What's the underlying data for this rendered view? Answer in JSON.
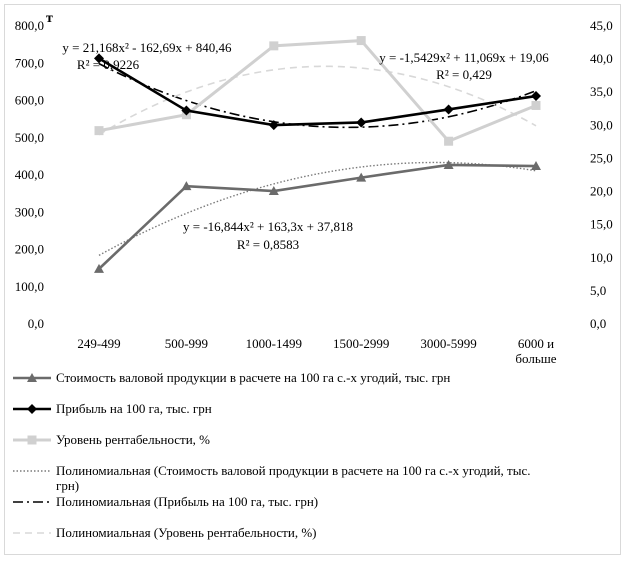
{
  "chart_data": {
    "type": "line",
    "y_unit_label": "т",
    "categories": [
      "249-499",
      "500-999",
      "1000-1499",
      "1500-2999",
      "3000-5999",
      "6000 и больше"
    ],
    "category_lines": [
      [
        "249-499"
      ],
      [
        "500-999"
      ],
      [
        "1000-1499"
      ],
      [
        "1500-2999"
      ],
      [
        "3000-5999"
      ],
      [
        "6000 и",
        "больше"
      ]
    ],
    "y_left": {
      "min": 0,
      "max": 800,
      "step": 100,
      "ticks": [
        "0,0",
        "100,0",
        "200,0",
        "300,0",
        "400,0",
        "500,0",
        "600,0",
        "700,0",
        "800,0"
      ]
    },
    "y_right": {
      "min": 0,
      "max": 45,
      "step": 5,
      "ticks": [
        "0,0",
        "5,0",
        "10,0",
        "15,0",
        "20,0",
        "25,0",
        "30,0",
        "35,0",
        "40,0",
        "45,0"
      ]
    },
    "grid": false,
    "legend_position": "bottom",
    "series": [
      {
        "name": "Стоимость валовой продукции в расчете на 100 га с.-х угодий, тыс. грн",
        "axis": "left",
        "color": "#6b6b6b",
        "marker": "triangle",
        "values": [
          148,
          370,
          357,
          393,
          427,
          424
        ]
      },
      {
        "name": "Прибыль на 100 га, тыс. грн",
        "axis": "left",
        "color": "#000000",
        "marker": "diamond",
        "values": [
          713,
          573,
          534,
          541,
          576,
          612
        ]
      },
      {
        "name": "Уровень рентабельности, %",
        "axis": "right",
        "color": "#d0d0d0",
        "marker": "square",
        "values": [
          29.2,
          31.6,
          42.0,
          42.8,
          27.6,
          33.0
        ]
      }
    ],
    "trendlines": [
      {
        "name": "Полиномиальная (Стоимость валовой продукции в расчете на 100 га с.-х угодий, тыс. грн)",
        "series_index": 0,
        "axis": "left",
        "style": "dotted",
        "color": "#7a7a7a",
        "coefficients": [
          -16.844,
          163.3,
          37.818
        ],
        "equation": "y = -16,844x² + 163,3x + 37,818",
        "r2": "R² = 0,8583"
      },
      {
        "name": "Полиномиальная (Прибыль на 100 га, тыс. грн)",
        "series_index": 1,
        "axis": "left",
        "style": "dashdot",
        "color": "#000000",
        "coefficients": [
          21.168,
          -162.69,
          840.46
        ],
        "equation": "y = 21,168x² - 162,69x + 840,46",
        "r2": "R² = 0,9226"
      },
      {
        "name": "Полиномиальная (Уровень рентабельности, %)",
        "series_index": 2,
        "axis": "right",
        "style": "dashed",
        "color": "#d8d8d8",
        "coefficients": [
          -1.5429,
          11.069,
          19.06
        ],
        "equation": "y = -1,5429x² + 11,069x + 19,06",
        "r2": "R² = 0,429"
      }
    ],
    "legend": [
      {
        "lines": [
          "Стоимость валовой продукции в расчете на 100 га с.-х угодий, тыс. грн"
        ],
        "kind": "series",
        "index": 0
      },
      {
        "lines": [
          "Прибыль на 100 га, тыс. грн"
        ],
        "kind": "series",
        "index": 1
      },
      {
        "lines": [
          "Уровень рентабельности, %"
        ],
        "kind": "series",
        "index": 2
      },
      {
        "lines": [
          "Полиномиальная (Стоимость валовой продукции в расчете на 100 га с.-х угодий, тыс.",
          "грн)"
        ],
        "kind": "trend",
        "index": 0
      },
      {
        "lines": [
          "Полиномиальная (Прибыль на 100 га, тыс. грн)"
        ],
        "kind": "trend",
        "index": 1
      },
      {
        "lines": [
          "Полиномиальная (Уровень рентабельности, %)"
        ],
        "kind": "trend",
        "index": 2
      }
    ]
  }
}
